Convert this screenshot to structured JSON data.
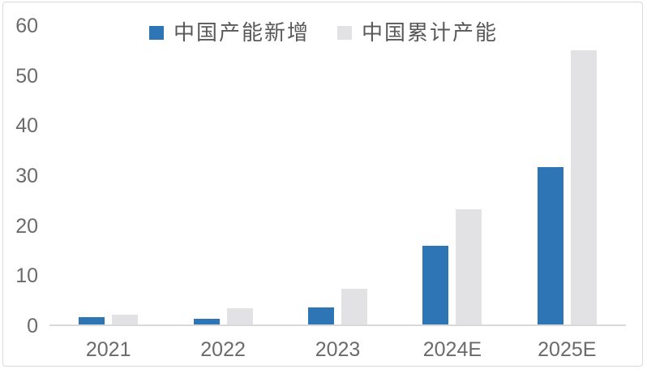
{
  "chart_data": {
    "type": "bar",
    "title": "",
    "xlabel": "",
    "ylabel": "",
    "categories": [
      "2021",
      "2022",
      "2023",
      "2024E",
      "2025E"
    ],
    "series": [
      {
        "name": "中国产能新增",
        "color": "#2E75B6",
        "values": [
          1.8,
          1.4,
          3.7,
          16,
          31.8
        ]
      },
      {
        "name": "中国累计产能",
        "color": "#E2E2E4",
        "values": [
          2.3,
          3.6,
          7.4,
          23.3,
          55.2
        ]
      }
    ],
    "ylim": [
      0,
      60
    ],
    "yticks": [
      0,
      10,
      20,
      30,
      40,
      50,
      60
    ],
    "grid": false,
    "legend_position": "top-center"
  },
  "colors": {
    "background": "#FFFFFF",
    "frame_border": "#D7DADD",
    "axis_line": "#D9D9D9",
    "tick_text": "#6B6B6B",
    "legend_text": "#595959"
  }
}
